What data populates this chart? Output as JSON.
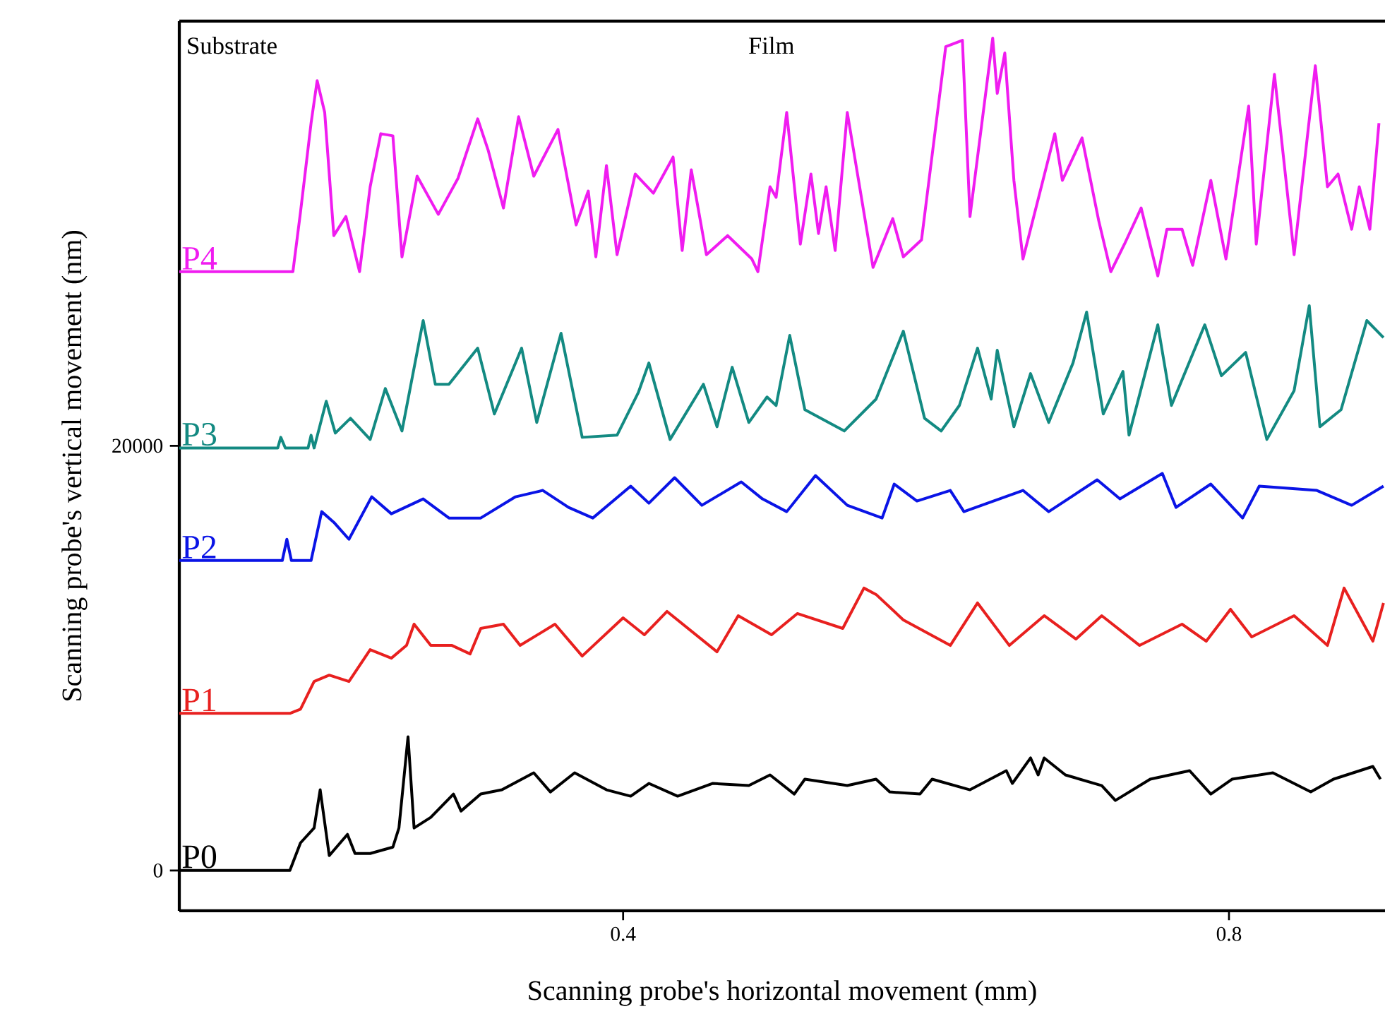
{
  "chart_data": {
    "type": "line",
    "xlabel": "Scanning probe's horizontal movement (mm)",
    "ylabel": "Scanning probe's vertical movement (nm)",
    "annotations": [
      "Substrate",
      "Film"
    ],
    "xlim": [
      0.107,
      0.903
    ],
    "ylim": [
      -1900,
      40000
    ],
    "xticks": [
      0.4,
      0.8
    ],
    "yticks": [
      0,
      20000
    ],
    "series": [
      {
        "name": "P0",
        "color": "#000000",
        "x": [
          0.107,
          0.18,
          0.187,
          0.196,
          0.2,
          0.206,
          0.218,
          0.223,
          0.233,
          0.248,
          0.252,
          0.258,
          0.262,
          0.273,
          0.288,
          0.293,
          0.306,
          0.32,
          0.341,
          0.352,
          0.368,
          0.389,
          0.405,
          0.417,
          0.436,
          0.459,
          0.483,
          0.497,
          0.513,
          0.52,
          0.548,
          0.567,
          0.576,
          0.596,
          0.604,
          0.629,
          0.653,
          0.657,
          0.669,
          0.674,
          0.678,
          0.692,
          0.716,
          0.725,
          0.748,
          0.774,
          0.788,
          0.802,
          0.829,
          0.854,
          0.869,
          0.895,
          0.9
        ],
        "values": [
          0,
          0,
          1300,
          2000,
          3800,
          700,
          1700,
          800,
          800,
          1100,
          2000,
          6300,
          2000,
          2500,
          3600,
          2800,
          3600,
          3800,
          4600,
          3700,
          4600,
          3800,
          3500,
          4100,
          3500,
          4100,
          4000,
          4500,
          3600,
          4300,
          4000,
          4300,
          3700,
          3600,
          4300,
          3800,
          4700,
          4100,
          5300,
          4500,
          5300,
          4500,
          4000,
          3300,
          4300,
          4700,
          3600,
          4300,
          4600,
          3700,
          4300,
          4900,
          4300
        ]
      },
      {
        "name": "P1",
        "color": "#e8201f",
        "x": [
          0.107,
          0.18,
          0.187,
          0.196,
          0.206,
          0.219,
          0.233,
          0.247,
          0.257,
          0.262,
          0.273,
          0.287,
          0.299,
          0.306,
          0.321,
          0.332,
          0.355,
          0.373,
          0.4,
          0.414,
          0.429,
          0.462,
          0.476,
          0.498,
          0.515,
          0.545,
          0.559,
          0.567,
          0.585,
          0.616,
          0.634,
          0.655,
          0.678,
          0.699,
          0.716,
          0.741,
          0.769,
          0.785,
          0.801,
          0.815,
          0.843,
          0.865,
          0.876,
          0.895,
          0.902
        ],
        "values": [
          7400,
          7400,
          7600,
          8900,
          9200,
          8900,
          10400,
          10000,
          10600,
          11600,
          10600,
          10600,
          10200,
          11400,
          11600,
          10600,
          11600,
          10100,
          11900,
          11100,
          12200,
          10300,
          12000,
          11100,
          12100,
          11400,
          13300,
          13000,
          11800,
          10600,
          12600,
          10600,
          12000,
          10900,
          12000,
          10600,
          11600,
          10800,
          12300,
          11000,
          12000,
          10600,
          13300,
          10800,
          12600
        ]
      },
      {
        "name": "P2",
        "color": "#0a14e6",
        "x": [
          0.107,
          0.175,
          0.178,
          0.181,
          0.194,
          0.201,
          0.209,
          0.219,
          0.234,
          0.247,
          0.268,
          0.285,
          0.306,
          0.329,
          0.347,
          0.364,
          0.38,
          0.405,
          0.417,
          0.434,
          0.452,
          0.478,
          0.492,
          0.508,
          0.527,
          0.548,
          0.571,
          0.579,
          0.594,
          0.616,
          0.625,
          0.664,
          0.681,
          0.713,
          0.728,
          0.756,
          0.765,
          0.788,
          0.809,
          0.82,
          0.858,
          0.881,
          0.902
        ],
        "values": [
          14600,
          14600,
          15600,
          14600,
          14600,
          16900,
          16400,
          15600,
          17600,
          16800,
          17500,
          16600,
          16600,
          17600,
          17900,
          17100,
          16600,
          18100,
          17300,
          18500,
          17200,
          18300,
          17500,
          16900,
          18600,
          17200,
          16600,
          18200,
          17400,
          17900,
          16900,
          17900,
          16900,
          18400,
          17500,
          18700,
          17100,
          18200,
          16600,
          18100,
          17900,
          17200,
          18100
        ]
      },
      {
        "name": "P3",
        "color": "#138a82",
        "x": [
          0.107,
          0.172,
          0.174,
          0.177,
          0.192,
          0.194,
          0.196,
          0.204,
          0.21,
          0.22,
          0.233,
          0.243,
          0.254,
          0.268,
          0.276,
          0.285,
          0.304,
          0.315,
          0.333,
          0.343,
          0.359,
          0.373,
          0.396,
          0.41,
          0.417,
          0.431,
          0.453,
          0.462,
          0.472,
          0.483,
          0.495,
          0.501,
          0.51,
          0.52,
          0.546,
          0.567,
          0.585,
          0.599,
          0.61,
          0.622,
          0.634,
          0.643,
          0.647,
          0.658,
          0.669,
          0.681,
          0.697,
          0.706,
          0.717,
          0.73,
          0.734,
          0.753,
          0.762,
          0.784,
          0.795,
          0.811,
          0.825,
          0.843,
          0.853,
          0.86,
          0.874,
          0.891,
          0.902
        ],
        "values": [
          19900,
          19900,
          20400,
          19900,
          19900,
          20500,
          19900,
          22100,
          20600,
          21300,
          20300,
          22700,
          20700,
          25900,
          22900,
          22900,
          24600,
          21500,
          24600,
          21100,
          25300,
          20400,
          20500,
          22500,
          23900,
          20300,
          22900,
          20900,
          23700,
          21100,
          22300,
          21900,
          25200,
          21700,
          20700,
          22200,
          25400,
          21300,
          20700,
          21900,
          24600,
          22200,
          24500,
          20900,
          23400,
          21100,
          23900,
          26300,
          21500,
          23500,
          20500,
          25700,
          21900,
          25700,
          23300,
          24400,
          20300,
          22600,
          26600,
          20900,
          21700,
          25900,
          25100
        ]
      },
      {
        "name": "P4",
        "color": "#f01cf0",
        "x": [
          0.107,
          0.182,
          0.187,
          0.194,
          0.198,
          0.203,
          0.209,
          0.217,
          0.226,
          0.233,
          0.24,
          0.248,
          0.254,
          0.264,
          0.278,
          0.291,
          0.304,
          0.311,
          0.321,
          0.331,
          0.341,
          0.357,
          0.369,
          0.377,
          0.382,
          0.389,
          0.396,
          0.408,
          0.42,
          0.433,
          0.439,
          0.445,
          0.455,
          0.469,
          0.485,
          0.489,
          0.497,
          0.501,
          0.508,
          0.517,
          0.524,
          0.529,
          0.534,
          0.54,
          0.548,
          0.565,
          0.578,
          0.585,
          0.597,
          0.613,
          0.624,
          0.629,
          0.644,
          0.647,
          0.652,
          0.658,
          0.664,
          0.685,
          0.69,
          0.703,
          0.714,
          0.722,
          0.731,
          0.742,
          0.753,
          0.759,
          0.769,
          0.776,
          0.788,
          0.798,
          0.813,
          0.818,
          0.83,
          0.843,
          0.857,
          0.865,
          0.872,
          0.881,
          0.886,
          0.893,
          0.899
        ],
        "values": [
          28200,
          28200,
          31000,
          35200,
          37200,
          35700,
          29900,
          30800,
          28200,
          32200,
          34700,
          34600,
          28900,
          32700,
          30900,
          32600,
          35400,
          33900,
          31200,
          35500,
          32700,
          34900,
          30400,
          32000,
          28900,
          33200,
          29000,
          32800,
          31900,
          33600,
          29200,
          33000,
          29000,
          29900,
          28800,
          28200,
          32200,
          31700,
          35700,
          29500,
          32800,
          30000,
          32200,
          29200,
          35700,
          28400,
          30700,
          28900,
          29700,
          38800,
          39100,
          30800,
          39200,
          36600,
          38500,
          32500,
          28800,
          34700,
          32500,
          34500,
          30600,
          28200,
          29500,
          31200,
          28000,
          30200,
          30200,
          28500,
          32500,
          28800,
          36000,
          29500,
          37500,
          29000,
          37900,
          32200,
          32800,
          30200,
          32200,
          30200,
          35200
        ]
      }
    ]
  }
}
